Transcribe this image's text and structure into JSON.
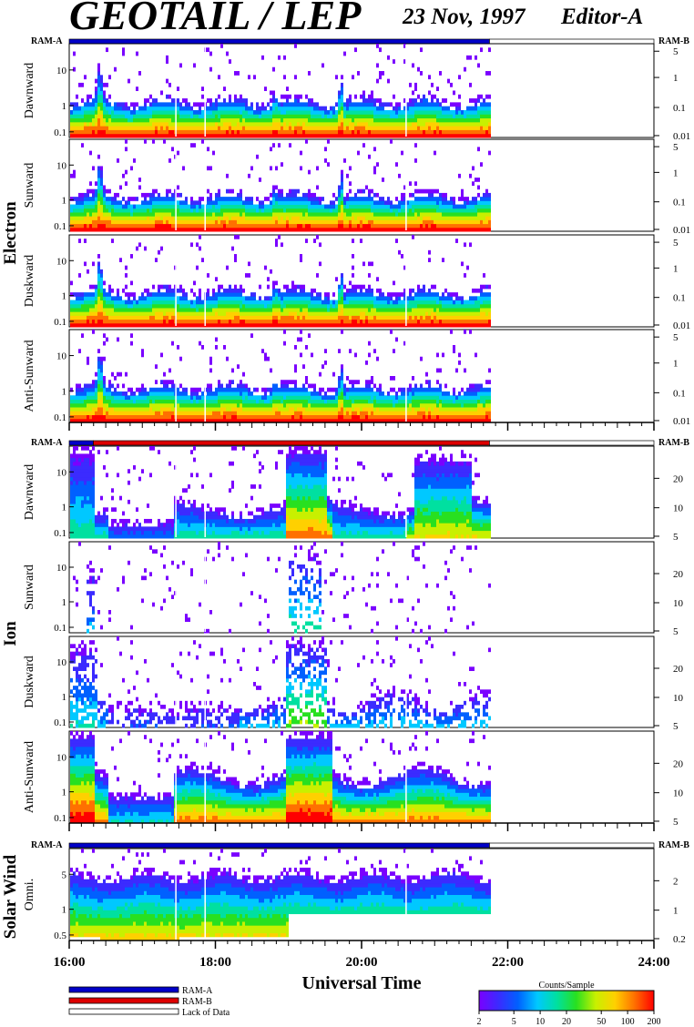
{
  "header": {
    "title": "GEOTAIL / LEP",
    "date": "23 Nov, 1997",
    "editor": "Editor-A"
  },
  "groups": [
    {
      "label": "Electron"
    },
    {
      "label": "Ion"
    },
    {
      "label": "Solar Wind"
    }
  ],
  "ram": {
    "left": "RAM-A",
    "right": "RAM-B"
  },
  "x_axis": {
    "label": "Universal Time",
    "ticks": [
      "16:00",
      "18:00",
      "20:00",
      "22:00",
      "24:00"
    ],
    "range_hours": [
      16,
      24
    ],
    "data_end_hours": 21.75
  },
  "status_bars": [
    {
      "group": "Electron",
      "segments": [
        {
          "mode": "RAM-A",
          "from": 16.0,
          "to": 21.75
        },
        {
          "mode": "Lack of Data",
          "from": 21.75,
          "to": 24.0
        }
      ]
    },
    {
      "group": "Ion",
      "segments": [
        {
          "mode": "RAM-A",
          "from": 16.0,
          "to": 16.33
        },
        {
          "mode": "RAM-B",
          "from": 16.33,
          "to": 21.75
        },
        {
          "mode": "Lack of Data",
          "from": 21.75,
          "to": 24.0
        }
      ]
    },
    {
      "group": "Solar Wind",
      "segments": [
        {
          "mode": "RAM-A",
          "from": 16.0,
          "to": 21.75
        },
        {
          "mode": "Lack of Data",
          "from": 21.75,
          "to": 24.0
        }
      ]
    }
  ],
  "legend": {
    "items": [
      {
        "label": "RAM-A",
        "color": "#0000c8"
      },
      {
        "label": "RAM-B",
        "color": "#dd0000"
      },
      {
        "label": "Lack of Data",
        "color": "#ffffff"
      }
    ]
  },
  "colorbar": {
    "title": "Counts/Sample",
    "ticks": [
      "2",
      "5",
      "10",
      "20",
      "50",
      "100",
      "200"
    ],
    "colors": [
      "#7a00ff",
      "#3b2bff",
      "#0060ff",
      "#00c8ff",
      "#00e0a0",
      "#28e020",
      "#c8f000",
      "#ffd000",
      "#ff7000",
      "#ff0000"
    ]
  },
  "chart_data": {
    "type": "heatmap",
    "panels": [
      {
        "group": "Electron",
        "label": "Dawnward",
        "left_ticks": [
          "10",
          "1",
          "0.1"
        ],
        "right_ticks": [
          "5",
          "1",
          "0.1",
          "0.01"
        ],
        "style": "electron"
      },
      {
        "group": "Electron",
        "label": "Sunward",
        "left_ticks": [
          "10",
          "1",
          "0.1"
        ],
        "right_ticks": [
          "5",
          "1",
          "0.1",
          "0.01"
        ],
        "style": "electron"
      },
      {
        "group": "Electron",
        "label": "Duskward",
        "left_ticks": [
          "10",
          "1",
          "0.1"
        ],
        "right_ticks": [
          "5",
          "1",
          "0.1",
          "0.01"
        ],
        "style": "electron"
      },
      {
        "group": "Electron",
        "label": "Anti-Sunward",
        "left_ticks": [
          "10",
          "1",
          "0.1"
        ],
        "right_ticks": [
          "5",
          "1",
          "0.1",
          "0.01"
        ],
        "style": "electron"
      },
      {
        "group": "Ion",
        "label": "Dawnward",
        "left_ticks": [
          "10",
          "1",
          "0.1"
        ],
        "right_ticks": [
          "20",
          "10",
          "5"
        ],
        "style": "ion_dawn"
      },
      {
        "group": "Ion",
        "label": "Sunward",
        "left_ticks": [
          "10",
          "1",
          "0.1"
        ],
        "right_ticks": [
          "20",
          "10",
          "5"
        ],
        "style": "ion_sparse"
      },
      {
        "group": "Ion",
        "label": "Duskward",
        "left_ticks": [
          "10",
          "1",
          "0.1"
        ],
        "right_ticks": [
          "20",
          "10",
          "5"
        ],
        "style": "ion_dusk"
      },
      {
        "group": "Ion",
        "label": "Anti-Sunward",
        "left_ticks": [
          "10",
          "1",
          "0.1"
        ],
        "right_ticks": [
          "20",
          "10",
          "5"
        ],
        "style": "ion_anti"
      },
      {
        "group": "Solar Wind",
        "label": "Omni.",
        "left_ticks": [
          "5",
          "1",
          "0.5"
        ],
        "right_ticks": [
          "2",
          "1",
          "0.2"
        ],
        "style": "solarwind"
      }
    ]
  }
}
